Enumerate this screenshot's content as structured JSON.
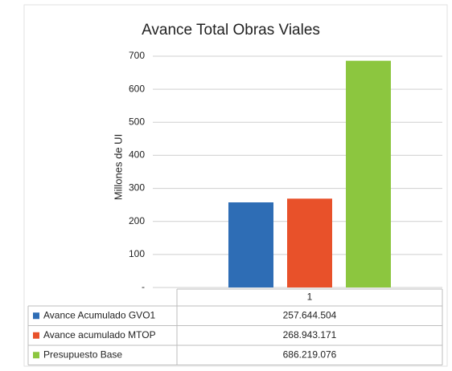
{
  "chart_data": {
    "type": "bar",
    "title": "Avance Total Obras Viales",
    "y_label": "Millones de UI",
    "categories": [
      "1"
    ],
    "series": [
      {
        "name": "Avance Acumulado GVO1",
        "color": "#2e6db5",
        "values": [
          257.644504
        ],
        "value_labels": [
          "257.644.504"
        ]
      },
      {
        "name": "Avance acumulado MTOP",
        "color": "#e8512a",
        "values": [
          268.943171
        ],
        "value_labels": [
          "268.943.171"
        ]
      },
      {
        "name": "Presupuesto Base",
        "color": "#8cc63f",
        "values": [
          686.219076
        ],
        "value_labels": [
          "686.219.076"
        ]
      }
    ],
    "ylim": [
      0,
      700
    ],
    "yticks": [
      {
        "value": 0,
        "label": "-"
      },
      100,
      200,
      300,
      400,
      500,
      600,
      700
    ],
    "grid": true,
    "data_table": true
  }
}
